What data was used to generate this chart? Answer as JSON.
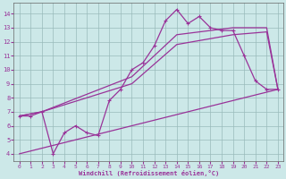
{
  "xlabel": "Windchill (Refroidissement éolien,°C)",
  "bg_color": "#cce8e8",
  "line_color": "#993399",
  "grid_color": "#99bbbb",
  "xlim": [
    -0.5,
    23.5
  ],
  "ylim": [
    3.5,
    14.8
  ],
  "xticks": [
    0,
    1,
    2,
    3,
    4,
    5,
    6,
    7,
    8,
    9,
    10,
    11,
    12,
    13,
    14,
    15,
    16,
    17,
    18,
    19,
    20,
    21,
    22,
    23
  ],
  "yticks": [
    4,
    5,
    6,
    7,
    8,
    9,
    10,
    11,
    12,
    13,
    14
  ],
  "line1_x": [
    0,
    1,
    2,
    3,
    4,
    5,
    6,
    7,
    8,
    9,
    10,
    11,
    12,
    13,
    14,
    15,
    16,
    17,
    18,
    19,
    20,
    21,
    22,
    23
  ],
  "line1_y": [
    6.7,
    6.7,
    7.0,
    4.0,
    5.5,
    6.0,
    5.5,
    5.3,
    7.8,
    8.6,
    10.0,
    10.5,
    11.7,
    13.5,
    14.3,
    13.3,
    13.8,
    13.0,
    12.8,
    12.8,
    11.0,
    9.2,
    8.6,
    8.6
  ],
  "line2_x": [
    0,
    2,
    10,
    14,
    19,
    22,
    23
  ],
  "line2_y": [
    6.7,
    7.0,
    9.5,
    12.5,
    13.0,
    13.0,
    8.6
  ],
  "line3_x": [
    0,
    2,
    10,
    14,
    19,
    22,
    23
  ],
  "line3_y": [
    6.7,
    7.0,
    9.0,
    11.8,
    12.5,
    12.7,
    8.6
  ],
  "line4_x": [
    0,
    23
  ],
  "line4_y": [
    4.0,
    8.6
  ],
  "marker": "+",
  "marker_size": 3.5,
  "line_width": 0.9
}
